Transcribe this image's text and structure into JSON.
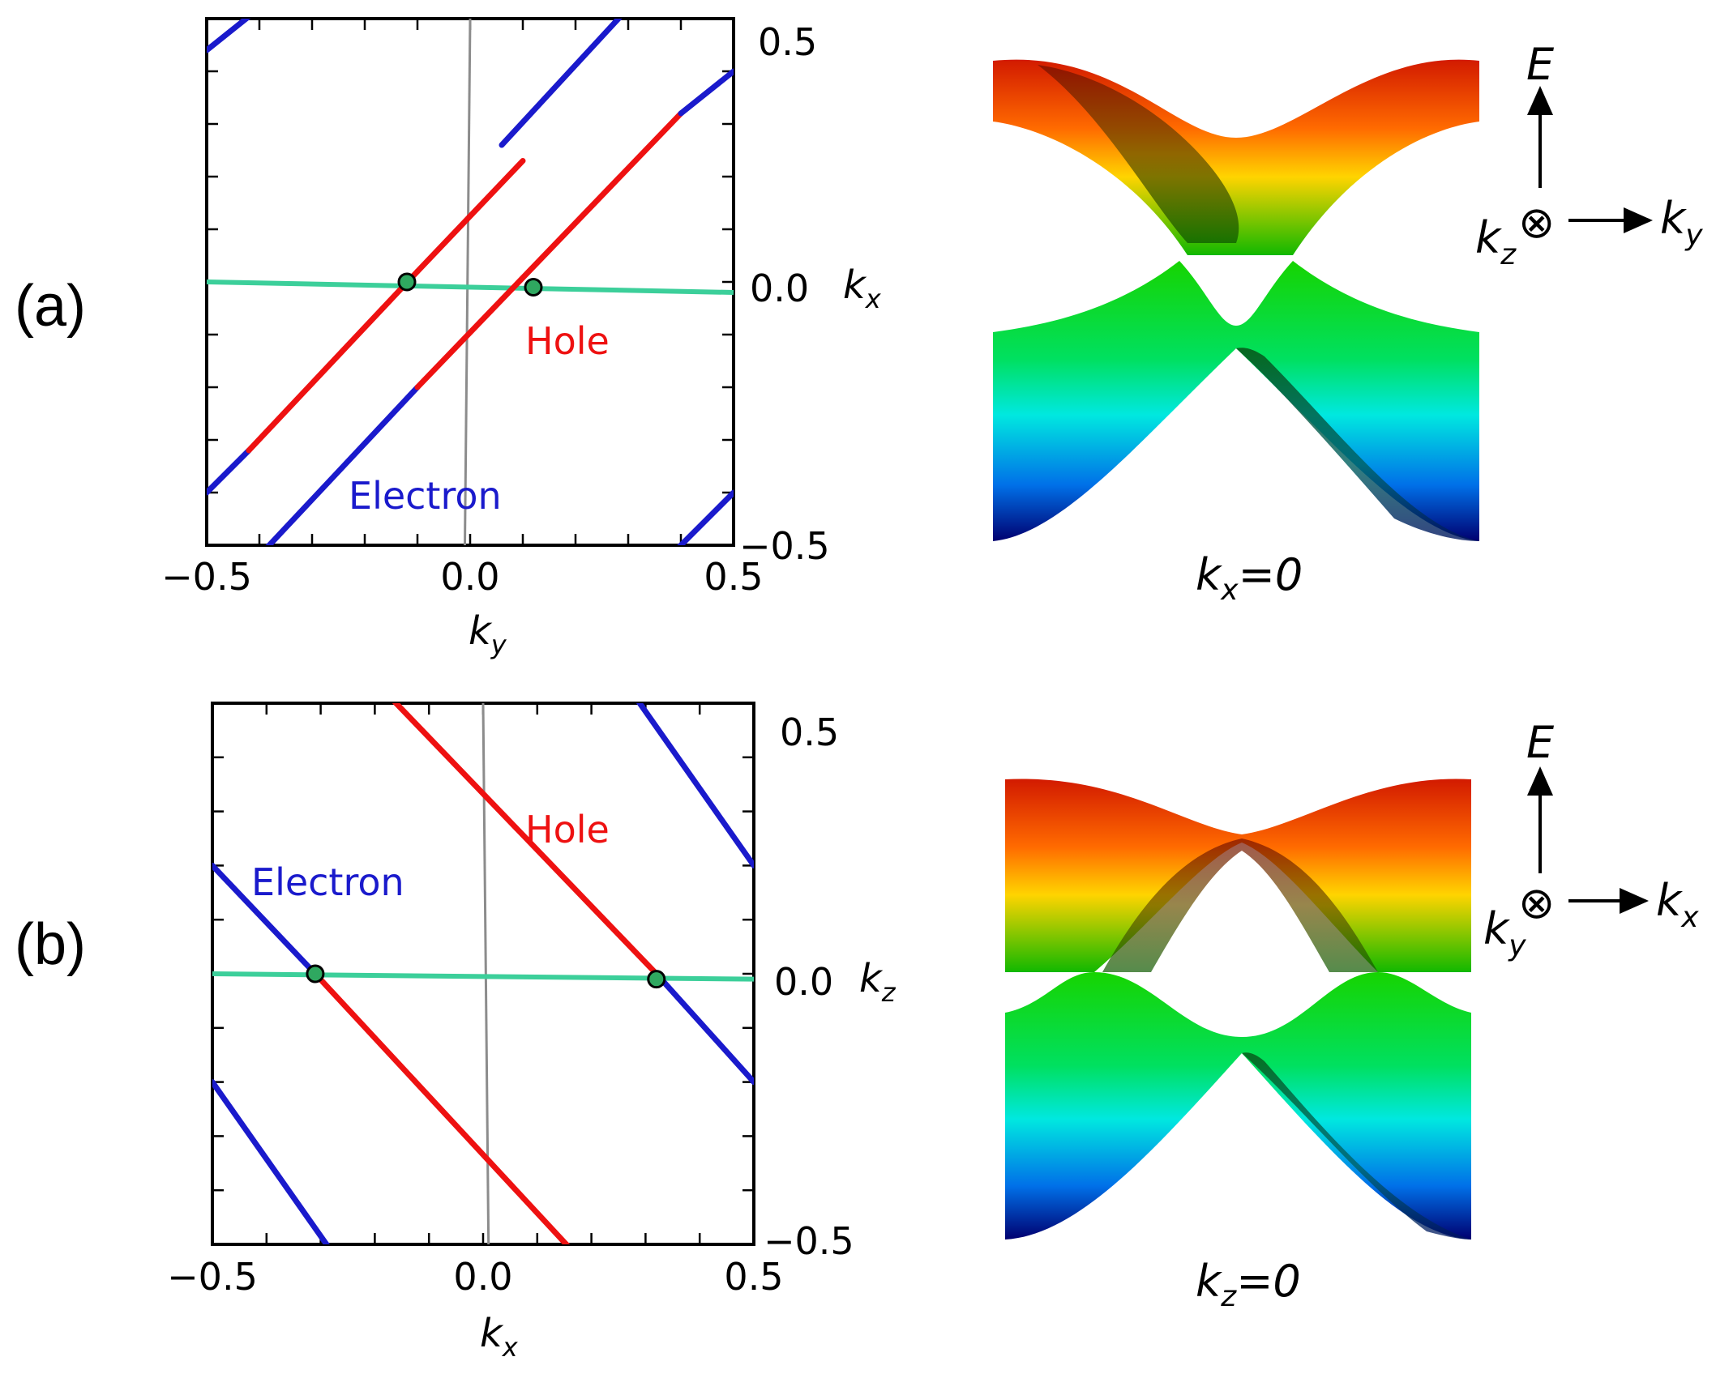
{
  "chart_data": [
    {
      "id": "a",
      "type": "line",
      "panel_label": "(a)",
      "xlabel": "k",
      "xlabel_sub": "y",
      "ylabel": "k",
      "ylabel_sub": "x",
      "xlim": [
        -0.5,
        0.5
      ],
      "ylim": [
        -0.5,
        0.5
      ],
      "xticks": [
        "−0.5",
        "0.0",
        "0.5"
      ],
      "yticks": [
        "0.5",
        "0.0",
        "−0.5"
      ],
      "annotations": {
        "hole": "Hole",
        "electron": "Electron"
      },
      "colors": {
        "electron": "#1a1acc",
        "hole": "#ee1111",
        "cut": "#3ccf9a",
        "node": "#2fa860",
        "guide": "#8c8c8c"
      },
      "segments": [
        {
          "carrier": "electron",
          "x": [
            -0.5,
            -0.4
          ],
          "y": [
            0.44,
            0.52
          ]
        },
        {
          "carrier": "electron",
          "x": [
            -0.5,
            -0.42
          ],
          "y": [
            -0.4,
            -0.32
          ]
        },
        {
          "carrier": "hole",
          "x": [
            -0.42,
            -0.1
          ],
          "y": [
            -0.32,
            0.02
          ]
        },
        {
          "carrier": "hole",
          "x": [
            -0.1,
            0.1
          ],
          "y": [
            0.02,
            0.23
          ]
        },
        {
          "carrier": "electron",
          "x": [
            0.06,
            0.3
          ],
          "y": [
            0.26,
            0.52
          ]
        },
        {
          "carrier": "electron",
          "x": [
            -0.4,
            -0.1
          ],
          "y": [
            -0.52,
            -0.2
          ]
        },
        {
          "carrier": "hole",
          "x": [
            -0.1,
            0.4
          ],
          "y": [
            -0.2,
            0.32
          ]
        },
        {
          "carrier": "electron",
          "x": [
            0.4,
            0.5
          ],
          "y": [
            0.32,
            0.4
          ]
        },
        {
          "carrier": "electron",
          "x": [
            0.38,
            0.5
          ],
          "y": [
            -0.52,
            -0.4
          ]
        }
      ],
      "cut_line": {
        "x": [
          -0.5,
          0.5
        ],
        "y": [
          0.0,
          -0.02
        ]
      },
      "guide_line": {
        "x": [
          0.0,
          -0.01
        ],
        "y": [
          0.5,
          -0.5
        ]
      },
      "nodes": [
        {
          "x": -0.12,
          "y": 0.0
        },
        {
          "x": 0.12,
          "y": -0.01
        }
      ]
    },
    {
      "id": "b",
      "type": "line",
      "panel_label": "(b)",
      "xlabel": "k",
      "xlabel_sub": "x",
      "ylabel": "k",
      "ylabel_sub": "z",
      "xlim": [
        -0.5,
        0.5
      ],
      "ylim": [
        -0.5,
        0.5
      ],
      "xticks": [
        "−0.5",
        "0.0",
        "0.5"
      ],
      "yticks": [
        "0.5",
        "0.0",
        "−0.5"
      ],
      "annotations": {
        "hole": "Hole",
        "electron": "Electron"
      },
      "colors": {
        "electron": "#1a1acc",
        "hole": "#ee1111",
        "cut": "#3ccf9a",
        "node": "#2fa860",
        "guide": "#8c8c8c"
      },
      "segments": [
        {
          "carrier": "electron",
          "x": [
            -0.5,
            -0.31
          ],
          "y": [
            0.2,
            0.0
          ]
        },
        {
          "carrier": "hole",
          "x": [
            -0.31,
            0.2
          ],
          "y": [
            0.0,
            -0.55
          ]
        },
        {
          "carrier": "electron",
          "x": [
            0.2,
            0.23
          ],
          "y": [
            -0.55,
            -0.57
          ]
        },
        {
          "carrier": "electron",
          "x": [
            -0.5,
            -0.24
          ],
          "y": [
            -0.2,
            -0.57
          ]
        },
        {
          "carrier": "electron",
          "x": [
            -0.24,
            -0.18
          ],
          "y": [
            0.57,
            0.52
          ]
        },
        {
          "carrier": "hole",
          "x": [
            -0.18,
            0.32
          ],
          "y": [
            0.52,
            0.0
          ]
        },
        {
          "carrier": "electron",
          "x": [
            0.32,
            0.5
          ],
          "y": [
            0.0,
            -0.2
          ]
        },
        {
          "carrier": "electron",
          "x": [
            0.24,
            0.5
          ],
          "y": [
            0.57,
            0.2
          ]
        }
      ],
      "cut_line": {
        "x": [
          -0.5,
          0.5
        ],
        "y": [
          0.0,
          -0.01
        ]
      },
      "guide_line": {
        "x": [
          0.0,
          0.01
        ],
        "y": [
          0.5,
          -0.5
        ]
      },
      "nodes": [
        {
          "x": -0.31,
          "y": 0.0
        },
        {
          "x": 0.32,
          "y": -0.01
        }
      ]
    }
  ],
  "bands": [
    {
      "caption_var": "k",
      "caption_sub": "x",
      "caption_rest": "=0",
      "axis_up": "E",
      "axis_right": "k",
      "axis_right_sub": "y",
      "axis_in": "k",
      "axis_in_sub": "z",
      "into_symbol": "⊗"
    },
    {
      "caption_var": "k",
      "caption_sub": "z",
      "caption_rest": "=0",
      "axis_up": "E",
      "axis_right": "k",
      "axis_right_sub": "x",
      "axis_in": "k",
      "axis_in_sub": "y",
      "into_symbol": "⊗"
    }
  ]
}
